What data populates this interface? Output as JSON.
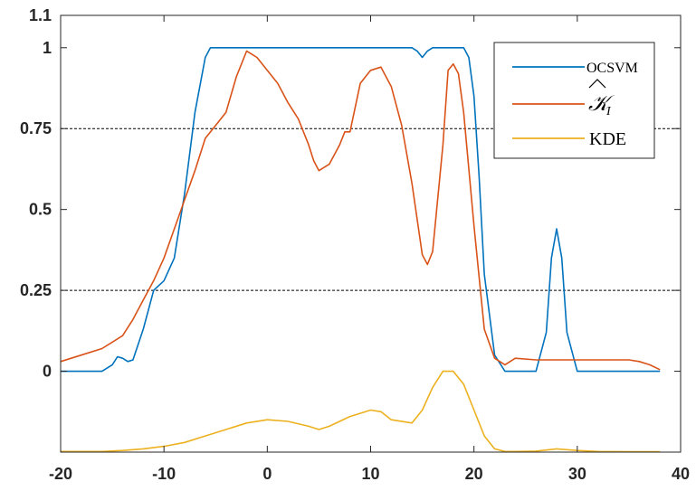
{
  "chart_data": {
    "type": "line",
    "title": "",
    "xlabel": "",
    "ylabel": "",
    "xlim": [
      -20,
      40
    ],
    "ylim": [
      -0.25,
      1.1
    ],
    "x_ticks": [
      -20,
      -10,
      0,
      10,
      20,
      30,
      40
    ],
    "x_tick_labels": [
      "-20",
      "-10",
      "0",
      "10",
      "20",
      "30",
      "40"
    ],
    "y_ticks": [
      0,
      0.25,
      0.5,
      0.75,
      1,
      1.1
    ],
    "y_tick_labels": [
      "0",
      "0.25",
      "0.5",
      "0.75",
      "1",
      "1.1"
    ],
    "reference_lines": [
      0.25,
      0.75
    ],
    "grid": false,
    "legend_position": "top-right",
    "series": [
      {
        "name": "OCSVM",
        "color": "#0072BD",
        "x": [
          -20,
          -16,
          -15,
          -14.5,
          -14,
          -13.5,
          -13,
          -12,
          -11,
          -10,
          -9,
          -8,
          -7,
          -6,
          -5.5,
          -5,
          0,
          5,
          10,
          14,
          14.5,
          15,
          15.5,
          16,
          17,
          18,
          19,
          19.5,
          20,
          20.5,
          21,
          22,
          23,
          24,
          25,
          26,
          27,
          27.5,
          28,
          28.5,
          29,
          30,
          31,
          35,
          38
        ],
        "values": [
          0,
          0,
          0.02,
          0.045,
          0.04,
          0.03,
          0.035,
          0.13,
          0.25,
          0.28,
          0.35,
          0.55,
          0.8,
          0.97,
          1.0,
          1.0,
          1.0,
          1.0,
          1.0,
          1.0,
          0.99,
          0.97,
          0.99,
          1.0,
          1.0,
          1.0,
          1.0,
          0.97,
          0.85,
          0.6,
          0.3,
          0.05,
          0,
          0,
          0,
          0,
          0.12,
          0.35,
          0.44,
          0.35,
          0.12,
          0,
          0,
          0,
          0
        ]
      },
      {
        "name": "K̂_I",
        "color": "#D95319",
        "x": [
          -20,
          -18,
          -16,
          -14,
          -13,
          -12,
          -11,
          -10,
          -9,
          -8,
          -7,
          -6,
          -5,
          -4,
          -3,
          -2,
          -1.5,
          -1,
          0,
          1,
          2,
          3,
          4,
          4.5,
          5,
          6,
          7,
          7.5,
          8,
          9,
          10,
          11,
          12,
          13,
          14,
          15,
          15.5,
          16,
          17,
          17.5,
          18,
          18.5,
          19,
          20,
          21,
          22,
          23,
          24,
          26,
          30,
          35,
          36,
          37,
          38
        ],
        "values": [
          0.03,
          0.05,
          0.07,
          0.11,
          0.16,
          0.22,
          0.28,
          0.35,
          0.44,
          0.53,
          0.62,
          0.72,
          0.76,
          0.8,
          0.91,
          0.99,
          0.98,
          0.97,
          0.93,
          0.89,
          0.83,
          0.78,
          0.7,
          0.65,
          0.62,
          0.64,
          0.7,
          0.74,
          0.74,
          0.89,
          0.93,
          0.94,
          0.88,
          0.76,
          0.58,
          0.36,
          0.33,
          0.37,
          0.7,
          0.93,
          0.95,
          0.92,
          0.8,
          0.45,
          0.13,
          0.04,
          0.02,
          0.04,
          0.035,
          0.035,
          0.035,
          0.03,
          0.02,
          0.005
        ]
      },
      {
        "name": "KDE",
        "color": "#EDB120",
        "x": [
          -20,
          -16,
          -14,
          -12,
          -10,
          -8,
          -6,
          -4,
          -2,
          0,
          2,
          4,
          5,
          6,
          8,
          10,
          11,
          12,
          14,
          15,
          16,
          17,
          18,
          19,
          20,
          21,
          22,
          23,
          24,
          26,
          28,
          30,
          32,
          35,
          38
        ],
        "values": [
          -0.248,
          -0.248,
          -0.245,
          -0.24,
          -0.232,
          -0.22,
          -0.2,
          -0.18,
          -0.16,
          -0.15,
          -0.155,
          -0.17,
          -0.18,
          -0.17,
          -0.14,
          -0.12,
          -0.125,
          -0.15,
          -0.16,
          -0.12,
          -0.05,
          0.0,
          0.0,
          -0.04,
          -0.12,
          -0.2,
          -0.24,
          -0.248,
          -0.248,
          -0.247,
          -0.24,
          -0.245,
          -0.248,
          -0.249,
          -0.249
        ]
      }
    ]
  }
}
